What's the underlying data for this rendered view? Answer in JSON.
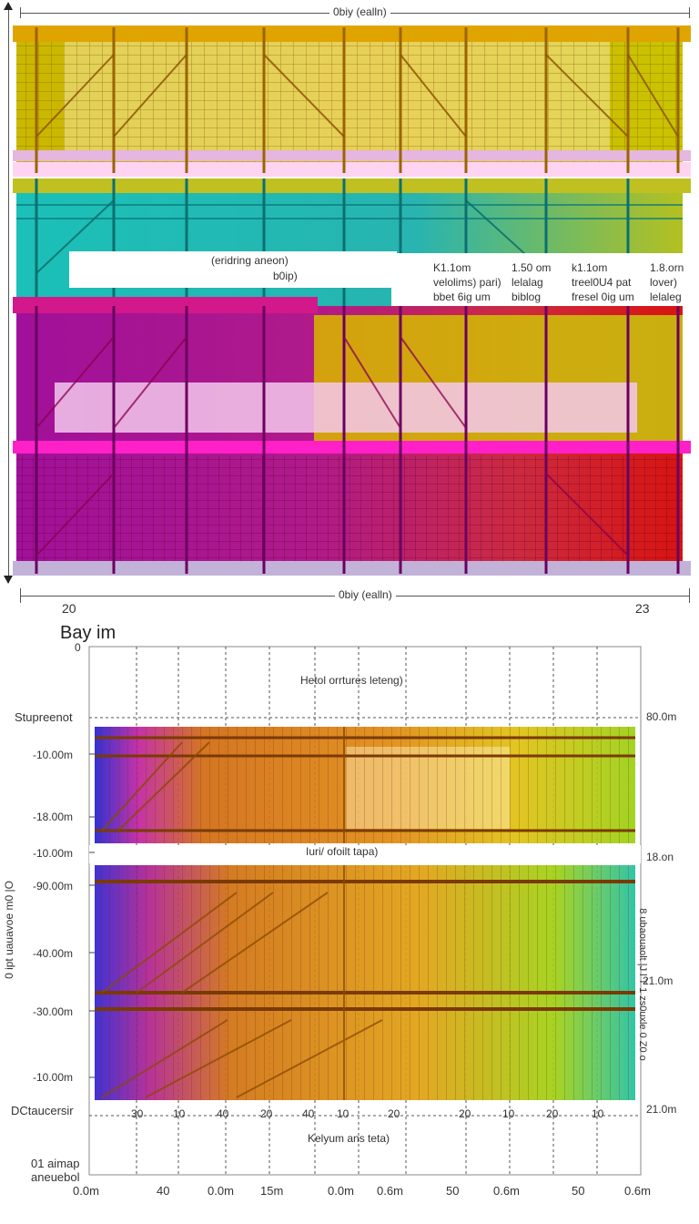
{
  "top_panel": {
    "dimension_top": "0biy (ealln)",
    "dimension_bottom": "0biy (ealln)",
    "corner_left": "20",
    "corner_right": "23",
    "callout": {
      "line1": "(eridring aneon)",
      "line2": "b0ip)"
    },
    "table": [
      [
        "K1.1om",
        "1.50 om",
        "k1.1om",
        "1.8.orn"
      ],
      [
        "velolims) pari)",
        "lelalag",
        "treel0U4 pat",
        "lover)"
      ],
      [
        "bbet 6ig um",
        "biblog",
        "fresel 0ig um",
        "lelaleg"
      ]
    ],
    "colors": {
      "top": "#c8b400",
      "middle": "#1ab9b7",
      "lower": "#b400b0",
      "accent": "#e0007a",
      "red": "#d71a10"
    }
  },
  "bottom_panel": {
    "title": "Bay im",
    "y_top_tick": "0",
    "header_text": "Hetol orrtures leteng)",
    "middle_text": "Iuri/ ofoilt tapa)",
    "bottom_text": "Kelyum ans teta)",
    "left_labels": [
      "Stupreenot",
      "-10.00m",
      "-18.00m",
      "-10.00m",
      "-90.00m",
      "-40.00m",
      "-30.00m",
      "-10.00m",
      "DCtaucersir"
    ],
    "left_vertical": "0 ipt uauavoe m0 |O",
    "right_labels": [
      "80.0m",
      "18.on",
      "21.0m",
      "21.0m"
    ],
    "right_vertical": "8 ubaouaolt |J l T 1 zs0uxle 0 Z0 o",
    "x_row_upper": [
      "30",
      "10",
      "40",
      "20",
      "40",
      "10",
      "20",
      "20",
      "10",
      "20",
      "10"
    ],
    "x_row_lower": [
      "0.0m",
      "40",
      "0.0m",
      "15m",
      "0.0m",
      "0.6m",
      "50",
      "0.6m",
      "50",
      "0.6m"
    ],
    "bottom_left": [
      "01 aimap",
      "aneuebol"
    ]
  }
}
